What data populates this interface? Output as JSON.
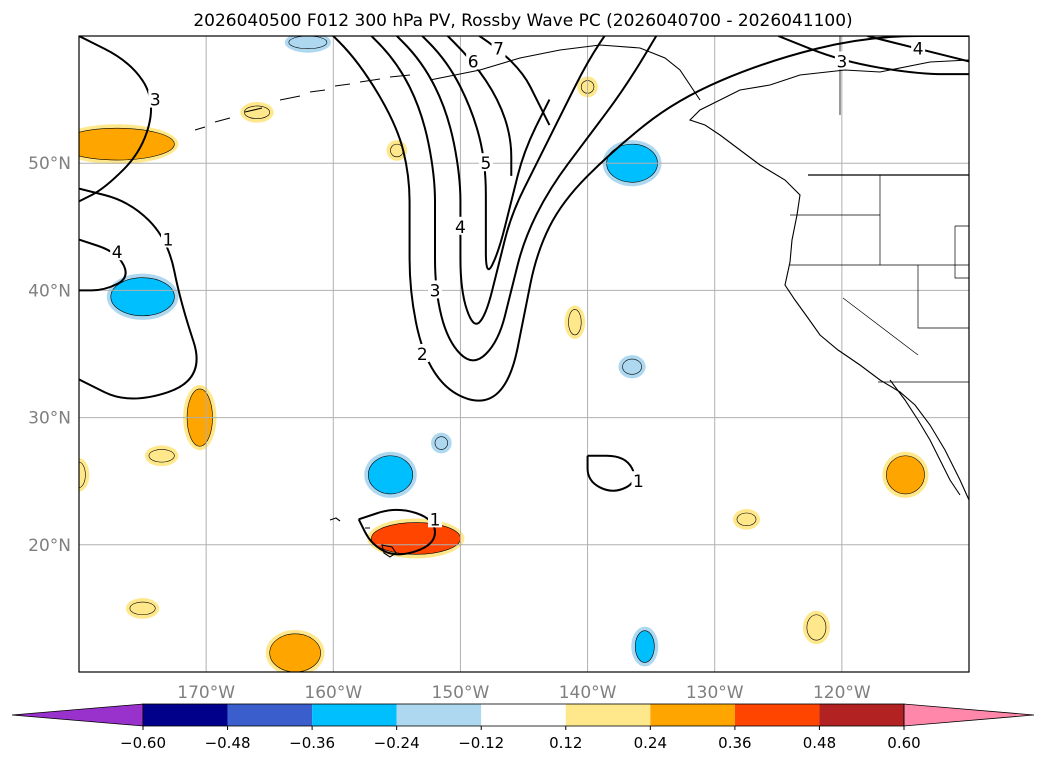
{
  "chart_data": {
    "type": "map",
    "title": "2026040500 F012 300 hPa PV, Rossby Wave PC (2026040700 - 2026041100)",
    "projection": "plate-carree",
    "xlim": [
      -180,
      -110
    ],
    "ylim": [
      10,
      60
    ],
    "grid": true,
    "lon_ticks": [
      {
        "value": -170,
        "label": "170°W"
      },
      {
        "value": -160,
        "label": "160°W"
      },
      {
        "value": -150,
        "label": "150°W"
      },
      {
        "value": -140,
        "label": "140°W"
      },
      {
        "value": -130,
        "label": "130°W"
      },
      {
        "value": -120,
        "label": "120°W"
      }
    ],
    "lat_ticks": [
      {
        "value": 20,
        "label": "20°N"
      },
      {
        "value": 30,
        "label": "30°N"
      },
      {
        "value": 40,
        "label": "40°N"
      },
      {
        "value": 50,
        "label": "50°N"
      }
    ],
    "colorbar": {
      "levels": [
        -0.6,
        -0.48,
        -0.36,
        -0.24,
        -0.12,
        0.12,
        0.24,
        0.36,
        0.48,
        0.6
      ],
      "tick_labels": [
        "−0.60",
        "−0.48",
        "−0.36",
        "−0.24",
        "−0.12",
        "0.12",
        "0.24",
        "0.36",
        "0.48",
        "0.60"
      ],
      "colors": [
        "#9932cc",
        "#00008b",
        "#3a5fcd",
        "#00bfff",
        "#add8f0",
        "#ffffff",
        "#ffe88c",
        "#ffa500",
        "#ff4500",
        "#b22222",
        "#ff88aa"
      ],
      "extend": "both"
    },
    "pv_contours": [
      {
        "label": "1",
        "points": [
          [
            -180,
            48
          ],
          [
            -176,
            47
          ],
          [
            -173,
            44
          ],
          [
            -172,
            39
          ],
          [
            -170,
            33
          ],
          [
            -176,
            31
          ],
          [
            -180,
            33
          ]
        ]
      },
      {
        "label": "2",
        "points": [
          [
            -161,
            61
          ],
          [
            -158,
            58
          ],
          [
            -155,
            53
          ],
          [
            -154,
            49
          ],
          [
            -154,
            45
          ],
          [
            -154,
            40
          ],
          [
            -153,
            35
          ],
          [
            -151,
            32
          ],
          [
            -148,
            31
          ],
          [
            -146,
            33
          ],
          [
            -145,
            38
          ],
          [
            -144,
            43
          ],
          [
            -142,
            47
          ],
          [
            -138,
            51
          ],
          [
            -133,
            55
          ],
          [
            -126,
            58
          ],
          [
            -118,
            60
          ],
          [
            -110,
            60
          ]
        ]
      },
      {
        "label": "3",
        "points": [
          [
            -158,
            61
          ],
          [
            -155,
            58
          ],
          [
            -153,
            54
          ],
          [
            -152,
            49
          ],
          [
            -152,
            45
          ],
          [
            -152,
            40
          ],
          [
            -151,
            36
          ],
          [
            -149,
            34
          ],
          [
            -147,
            36
          ],
          [
            -146,
            40
          ],
          [
            -145,
            44
          ],
          [
            -143,
            48
          ],
          [
            -140,
            52
          ],
          [
            -137,
            56
          ],
          [
            -134,
            61
          ]
        ]
      },
      {
        "label": "4",
        "points": [
          [
            -156,
            61
          ],
          [
            -153,
            58
          ],
          [
            -151,
            54
          ],
          [
            -150,
            49
          ],
          [
            -150,
            45
          ],
          [
            -150,
            40
          ],
          [
            -149,
            37
          ],
          [
            -148,
            38
          ],
          [
            -147,
            42
          ],
          [
            -146,
            46
          ],
          [
            -144,
            50
          ],
          [
            -142,
            54
          ],
          [
            -140,
            58
          ],
          [
            -138,
            61
          ]
        ]
      },
      {
        "label": "5",
        "points": [
          [
            -154,
            61
          ],
          [
            -151,
            58
          ],
          [
            -149,
            54
          ],
          [
            -148,
            50
          ],
          [
            -148,
            45
          ],
          [
            -148,
            41
          ],
          [
            -147,
            43
          ],
          [
            -146,
            47
          ],
          [
            -145,
            51
          ],
          [
            -143,
            55
          ]
        ]
      },
      {
        "label": "6",
        "points": [
          [
            -152,
            61
          ],
          [
            -149,
            58
          ],
          [
            -147,
            55
          ],
          [
            -146,
            52
          ],
          [
            -146,
            49
          ]
        ]
      },
      {
        "label": "7",
        "points": [
          [
            -150,
            61
          ],
          [
            -147,
            59
          ],
          [
            -145,
            57
          ],
          [
            -144,
            55
          ],
          [
            -143,
            53
          ]
        ]
      },
      {
        "label": "1",
        "points": [
          [
            -140,
            27
          ],
          [
            -137,
            27
          ],
          [
            -136,
            25
          ],
          [
            -138,
            24
          ],
          [
            -140,
            25
          ],
          [
            -140,
            27
          ]
        ]
      },
      {
        "label": "1",
        "points": [
          [
            -158,
            22
          ],
          [
            -155,
            23
          ],
          [
            -152,
            22
          ],
          [
            -152,
            20
          ],
          [
            -155,
            19
          ],
          [
            -157,
            20
          ],
          [
            -158,
            22
          ]
        ]
      },
      {
        "label": "3",
        "points": [
          [
            -180,
            60
          ],
          [
            -176,
            58
          ],
          [
            -174,
            55
          ],
          [
            -175,
            51
          ],
          [
            -178,
            48
          ],
          [
            -180,
            47
          ]
        ]
      },
      {
        "label": "4",
        "points": [
          [
            -180,
            44
          ],
          [
            -177,
            43
          ],
          [
            -176,
            41
          ],
          [
            -178,
            40
          ],
          [
            -180,
            40
          ]
        ]
      },
      {
        "label": "3",
        "points": [
          [
            -125,
            60
          ],
          [
            -120,
            58
          ],
          [
            -114,
            57
          ],
          [
            -110,
            57
          ]
        ]
      },
      {
        "label": "4",
        "points": [
          [
            -118,
            60
          ],
          [
            -114,
            59
          ],
          [
            -110,
            58
          ]
        ]
      }
    ],
    "anomaly_patches": [
      {
        "center": [
          -177,
          51.5
        ],
        "size": [
          9,
          2.5
        ],
        "value": 0.3
      },
      {
        "center": [
          -166,
          54
        ],
        "size": [
          2,
          1
        ],
        "value": 0.18
      },
      {
        "center": [
          -162,
          59.5
        ],
        "size": [
          3,
          1
        ],
        "value": -0.2
      },
      {
        "center": [
          -175,
          39.5
        ],
        "size": [
          5,
          3
        ],
        "value": -0.25
      },
      {
        "center": [
          -136.5,
          50
        ],
        "size": [
          4,
          3
        ],
        "value": -0.25
      },
      {
        "center": [
          -170.5,
          30
        ],
        "size": [
          2,
          4.5
        ],
        "value": 0.28
      },
      {
        "center": [
          -155.5,
          25.5
        ],
        "size": [
          3.5,
          3
        ],
        "value": -0.28
      },
      {
        "center": [
          -153.5,
          20.5
        ],
        "size": [
          7,
          2.5
        ],
        "value": 0.38
      },
      {
        "center": [
          -115,
          25.5
        ],
        "size": [
          3,
          3
        ],
        "value": 0.3
      },
      {
        "center": [
          -163,
          11.5
        ],
        "size": [
          4,
          3
        ],
        "value": 0.28
      },
      {
        "center": [
          -135.5,
          12
        ],
        "size": [
          1.5,
          2.5
        ],
        "value": -0.28
      },
      {
        "center": [
          -136.5,
          34
        ],
        "size": [
          1.5,
          1.2
        ],
        "value": -0.2
      },
      {
        "center": [
          -141,
          37.5
        ],
        "size": [
          1,
          2
        ],
        "value": 0.22
      },
      {
        "center": [
          -173.5,
          27
        ],
        "size": [
          2,
          1
        ],
        "value": 0.2
      },
      {
        "center": [
          -175,
          15
        ],
        "size": [
          2,
          1
        ],
        "value": 0.2
      },
      {
        "center": [
          -122,
          13.5
        ],
        "size": [
          1.5,
          2
        ],
        "value": 0.2
      },
      {
        "center": [
          -127.5,
          22
        ],
        "size": [
          1.5,
          1
        ],
        "value": 0.18
      },
      {
        "center": [
          -151.5,
          28
        ],
        "size": [
          1,
          1
        ],
        "value": -0.15
      },
      {
        "center": [
          -140,
          56
        ],
        "size": [
          1,
          1
        ],
        "value": 0.18
      },
      {
        "center": [
          -155,
          51
        ],
        "size": [
          1,
          1
        ],
        "value": 0.15
      },
      {
        "center": [
          -180,
          25.5
        ],
        "size": [
          1,
          2
        ],
        "value": 0.2
      }
    ]
  }
}
